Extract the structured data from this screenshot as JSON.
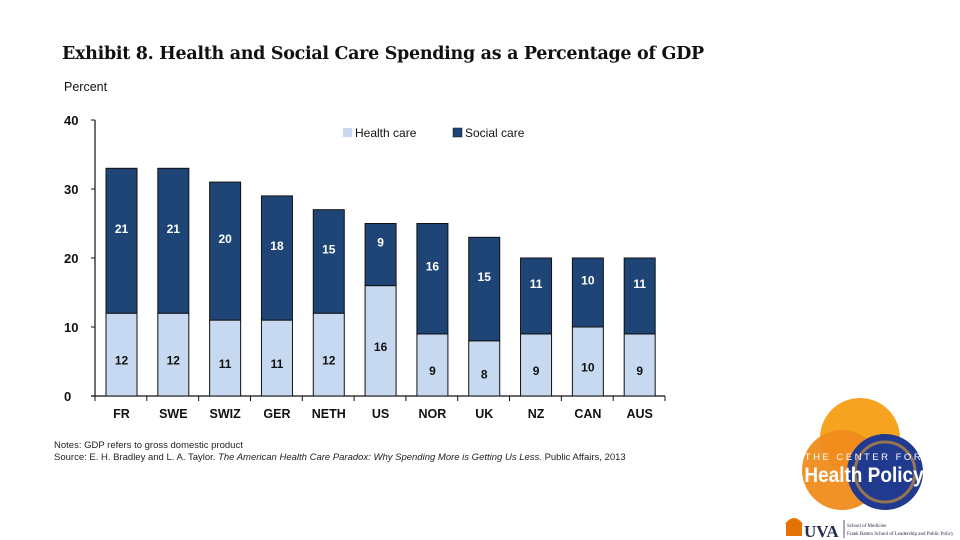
{
  "chart_data": {
    "type": "bar",
    "stacked": true,
    "title": "Exhibit 8. Health and Social Care Spending as a Percentage of GDP",
    "ylabel": "Percent",
    "xlabel": "",
    "ylim": [
      0,
      40
    ],
    "yticks": [
      0,
      10,
      20,
      30,
      40
    ],
    "grid": false,
    "legend_position": "top-center",
    "categories": [
      "FR",
      "SWE",
      "SWIZ",
      "GER",
      "NETH",
      "US",
      "NOR",
      "UK",
      "NZ",
      "CAN",
      "AUS"
    ],
    "series": [
      {
        "name": "Health care",
        "color": "#c6d9f0",
        "values": [
          12,
          12,
          11,
          11,
          12,
          16,
          9,
          8,
          9,
          10,
          9
        ],
        "label_color": "#111111"
      },
      {
        "name": "Social care",
        "color": "#1f4577",
        "values": [
          21,
          21,
          20,
          18,
          15,
          9,
          16,
          15,
          11,
          10,
          11
        ],
        "label_color": "#ffffff"
      }
    ]
  },
  "notes": {
    "note_line": "Notes: GDP refers to gross domestic product",
    "source_prefix": "Source: E. H. Bradley and L. A. Taylor.",
    "source_title": "The American Health Care Paradox: Why Spending More is Getting Us Less.",
    "source_suffix": "Public Affairs, 2013"
  },
  "logo": {
    "line1": "THE CENTER FOR",
    "line2": "Health Policy",
    "uva": "UVA",
    "school1": "School of Medicine",
    "school2": "Frank Batten School of Leadership and Public Policy",
    "colors": {
      "orange": "#f5a623",
      "orange_dark": "#ef8f1f",
      "navy": "#1f3f8f"
    }
  }
}
